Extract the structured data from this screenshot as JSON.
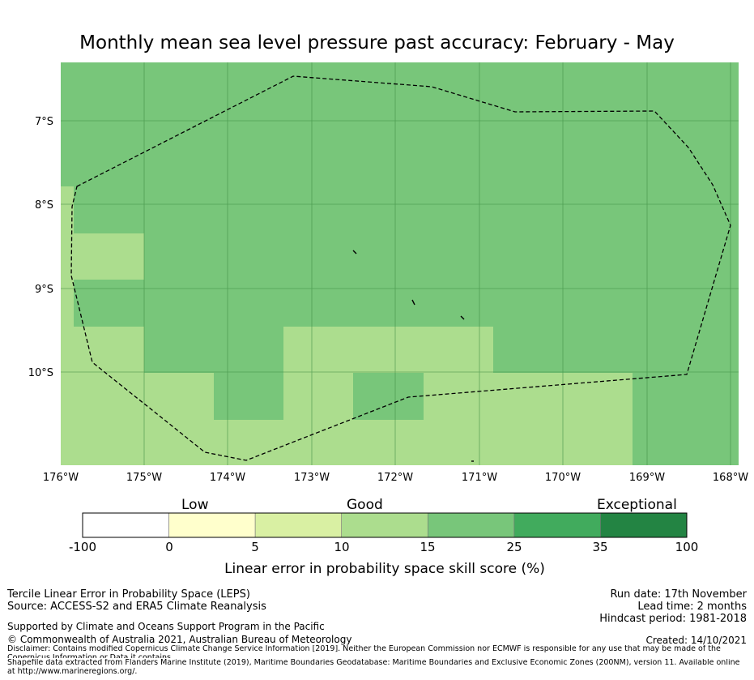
{
  "title": "Monthly mean sea level pressure past accuracy: February - May",
  "map": {
    "lat_labels": [
      "7°S",
      "8°S",
      "9°S",
      "10°S"
    ],
    "lon_labels": [
      "176°W",
      "175°W",
      "174°W",
      "173°W",
      "172°W",
      "171°W",
      "170°W",
      "169°W",
      "168°W"
    ],
    "extent": {
      "lon_min": -176,
      "lon_max": -167.9,
      "lat_min": -11.1,
      "lat_max": -6.3
    },
    "skill_colors": {
      "good": "#acdd8e",
      "very_good": "#78c67a"
    }
  },
  "colorbar": {
    "category_labels": [
      "Low",
      "Good",
      "Exceptional"
    ],
    "ticks": [
      "-100",
      "0",
      "5",
      "10",
      "15",
      "25",
      "35",
      "100"
    ],
    "colors": [
      "#ffffff",
      "#ffffcc",
      "#d9f0a3",
      "#acdd8e",
      "#78c67a",
      "#41ab5d",
      "#238443"
    ],
    "label": "Linear error in probability space skill score (%)"
  },
  "footer": {
    "method": "Tercile Linear Error in Probability Space (LEPS)",
    "source": "Source: ACCESS-S2 and ERA5 Climate Reanalysis",
    "run_date": "Run date: 17th November",
    "lead_time": "Lead time: 2 months",
    "hindcast": "Hindcast period: 1981-2018",
    "support": "Supported by Climate and Oceans Support Program in the Pacific",
    "copyright": "© Commonwealth of Australia 2021, Australian Bureau of Meteorology",
    "created": "Created: 14/10/2021",
    "disclaimer": "Disclaimer: Contains modified Copernicus Climate Change Service Information [2019]. Neither the European Commission nor ECMWF is responsible for any use that may be made of the Copernicus Information or Data it contains.",
    "shapefile": "Shapefile data extracted from Flanders Marine Institute (2019), Maritime Boundaries Geodatabase: Maritime Boundaries and Exclusive Economic Zones (200NM), version 11. Available online at http://www.marineregions.org/."
  }
}
